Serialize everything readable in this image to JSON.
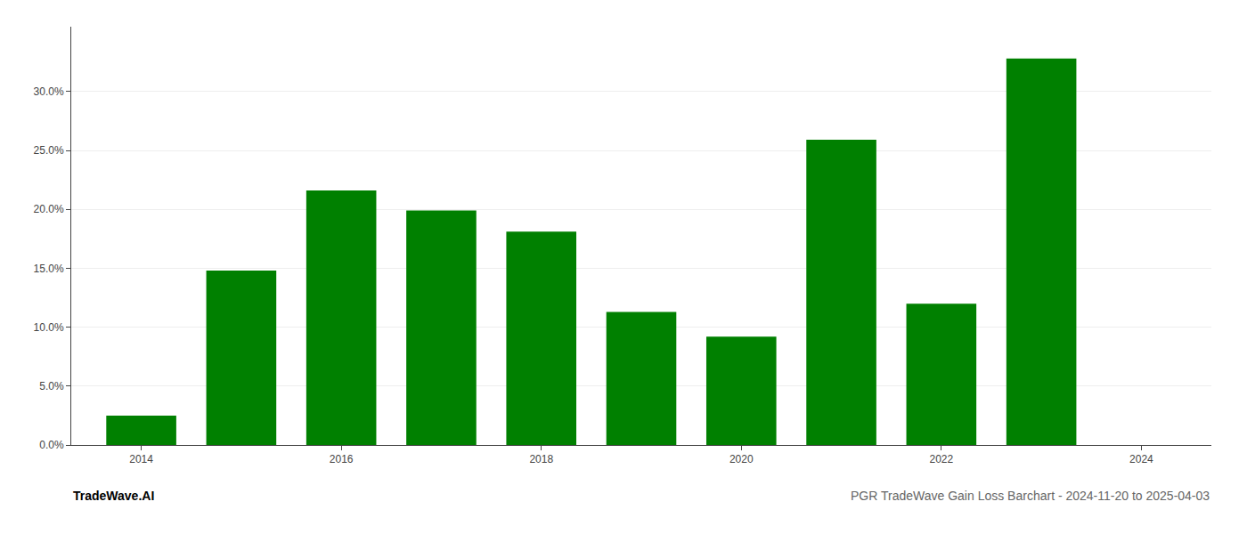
{
  "chart_data": {
    "type": "bar",
    "title": "PGR TradeWave Gain Loss Barchart - 2024-11-20 to 2025-04-03",
    "annotations": [
      {
        "text": "TradeWave.AI"
      }
    ],
    "x": [
      2014,
      2015,
      2016,
      2017,
      2018,
      2019,
      2020,
      2021,
      2022,
      2023
    ],
    "values": [
      0.025,
      0.148,
      0.216,
      0.199,
      0.181,
      0.113,
      0.092,
      0.259,
      0.12,
      0.328
    ],
    "color": "#008000",
    "xlim": [
      2013.3,
      2024.7
    ],
    "xticks": [
      2014,
      2016,
      2018,
      2020,
      2022,
      2024
    ],
    "ylim": [
      0,
      0.355
    ],
    "yticks": [
      {
        "value": 0.0,
        "label": "0.0%"
      },
      {
        "value": 0.05,
        "label": "5.0%"
      },
      {
        "value": 0.1,
        "label": "10.0%"
      },
      {
        "value": 0.15,
        "label": "15.0%"
      },
      {
        "value": 0.2,
        "label": "20.0%"
      },
      {
        "value": 0.25,
        "label": "25.0%"
      },
      {
        "value": 0.3,
        "label": "30.0%"
      }
    ],
    "grid": true
  }
}
